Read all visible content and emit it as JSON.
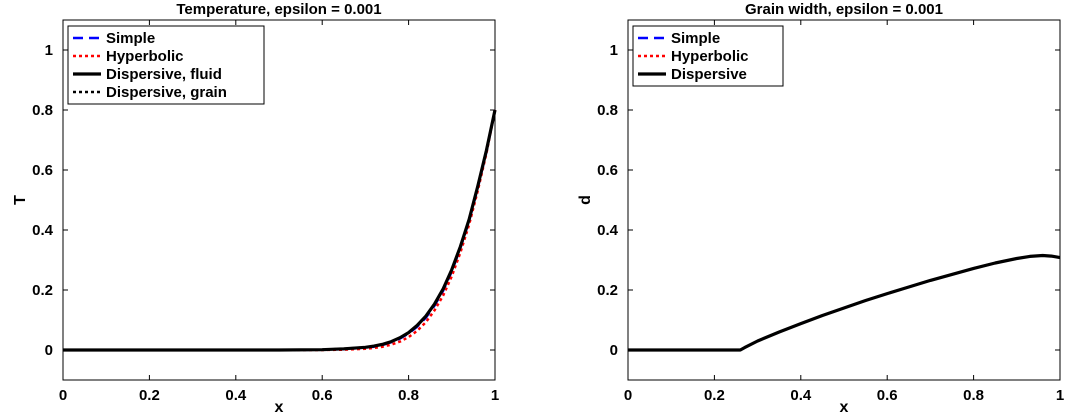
{
  "chart_data": [
    {
      "type": "line",
      "title": "Temperature, epsilon = 0.001",
      "xlabel": "x",
      "ylabel": "T",
      "xlim": [
        0,
        1
      ],
      "ylim": [
        -0.1,
        1.1
      ],
      "xticks": [
        "0",
        "0.2",
        "0.4",
        "0.6",
        "0.8",
        "1"
      ],
      "xtick_values": [
        0,
        0.2,
        0.4,
        0.6,
        0.8,
        1
      ],
      "yticks": [
        "0",
        "0.2",
        "0.4",
        "0.6",
        "0.8",
        "1"
      ],
      "ytick_values": [
        0,
        0.2,
        0.4,
        0.6,
        0.8,
        1
      ],
      "grid": false,
      "legend_position": "top-left",
      "series": [
        {
          "name": "Simple",
          "color": "#0000ff",
          "style": "dashed",
          "x": [
            0,
            0.1,
            0.2,
            0.3,
            0.4,
            0.5,
            0.6,
            0.65,
            0.7,
            0.72,
            0.74,
            0.76,
            0.78,
            0.8,
            0.82,
            0.84,
            0.86,
            0.88,
            0.9,
            0.92,
            0.94,
            0.96,
            0.98,
            1.0
          ],
          "y": [
            0,
            0,
            0,
            0,
            0,
            0,
            0.001,
            0.003,
            0.008,
            0.011,
            0.017,
            0.026,
            0.038,
            0.055,
            0.078,
            0.108,
            0.148,
            0.198,
            0.262,
            0.34,
            0.43,
            0.54,
            0.66,
            0.8
          ]
        },
        {
          "name": "Hyperbolic",
          "color": "#ff0000",
          "style": "dotted",
          "x": [
            0,
            0.1,
            0.2,
            0.3,
            0.4,
            0.5,
            0.6,
            0.65,
            0.7,
            0.72,
            0.74,
            0.76,
            0.78,
            0.8,
            0.82,
            0.84,
            0.86,
            0.88,
            0.9,
            0.92,
            0.94,
            0.96,
            0.98,
            1.0
          ],
          "y": [
            0,
            0,
            0,
            0,
            0,
            0,
            0.0,
            0.001,
            0.004,
            0.007,
            0.011,
            0.018,
            0.028,
            0.043,
            0.064,
            0.093,
            0.132,
            0.182,
            0.246,
            0.325,
            0.418,
            0.53,
            0.655,
            0.8
          ]
        },
        {
          "name": "Dispersive, fluid",
          "color": "#000000",
          "style": "solid",
          "x": [
            0,
            0.1,
            0.2,
            0.3,
            0.4,
            0.5,
            0.6,
            0.65,
            0.7,
            0.72,
            0.74,
            0.76,
            0.78,
            0.8,
            0.82,
            0.84,
            0.86,
            0.88,
            0.9,
            0.92,
            0.94,
            0.96,
            0.98,
            1.0
          ],
          "y": [
            0,
            0,
            0,
            0,
            0,
            0,
            0.001,
            0.004,
            0.009,
            0.013,
            0.019,
            0.028,
            0.041,
            0.058,
            0.082,
            0.113,
            0.153,
            0.204,
            0.268,
            0.345,
            0.435,
            0.545,
            0.665,
            0.8
          ]
        },
        {
          "name": "Dispersive, grain",
          "color": "#000000",
          "style": "dotted",
          "x": [
            0,
            0.1,
            0.2,
            0.3,
            0.4,
            0.5,
            0.6,
            0.65,
            0.7,
            0.72,
            0.74,
            0.76,
            0.78,
            0.8,
            0.82,
            0.84,
            0.86,
            0.88,
            0.9,
            0.92,
            0.94,
            0.96,
            0.98,
            1.0
          ],
          "y": [
            0,
            0,
            0,
            0,
            0,
            0,
            0.001,
            0.004,
            0.009,
            0.013,
            0.019,
            0.028,
            0.041,
            0.058,
            0.082,
            0.113,
            0.153,
            0.204,
            0.268,
            0.345,
            0.435,
            0.545,
            0.665,
            0.8
          ]
        }
      ]
    },
    {
      "type": "line",
      "title": "Grain width, epsilon = 0.001",
      "xlabel": "x",
      "ylabel": "d",
      "xlim": [
        0,
        1
      ],
      "ylim": [
        -0.1,
        1.1
      ],
      "xticks": [
        "0",
        "0.2",
        "0.4",
        "0.6",
        "0.8",
        "1"
      ],
      "xtick_values": [
        0,
        0.2,
        0.4,
        0.6,
        0.8,
        1
      ],
      "yticks": [
        "0",
        "0.2",
        "0.4",
        "0.6",
        "0.8",
        "1"
      ],
      "ytick_values": [
        0,
        0.2,
        0.4,
        0.6,
        0.8,
        1
      ],
      "grid": false,
      "legend_position": "top-left",
      "series": [
        {
          "name": "Simple",
          "color": "#0000ff",
          "style": "dashed",
          "x": [
            0,
            0.1,
            0.2,
            0.26,
            0.27,
            0.3,
            0.35,
            0.4,
            0.45,
            0.5,
            0.55,
            0.6,
            0.65,
            0.7,
            0.75,
            0.8,
            0.85,
            0.9,
            0.93,
            0.96,
            0.98,
            1.0
          ],
          "y": [
            0,
            0,
            0,
            0,
            0.008,
            0.03,
            0.06,
            0.088,
            0.115,
            0.14,
            0.165,
            0.188,
            0.21,
            0.232,
            0.252,
            0.272,
            0.29,
            0.305,
            0.312,
            0.315,
            0.313,
            0.308
          ]
        },
        {
          "name": "Hyperbolic",
          "color": "#ff0000",
          "style": "dotted",
          "x": [
            0,
            0.1,
            0.2,
            0.26,
            0.27,
            0.3,
            0.35,
            0.4,
            0.45,
            0.5,
            0.55,
            0.6,
            0.65,
            0.7,
            0.75,
            0.8,
            0.85,
            0.9,
            0.93,
            0.96,
            0.98,
            1.0
          ],
          "y": [
            0,
            0,
            0,
            0,
            0.008,
            0.03,
            0.06,
            0.088,
            0.115,
            0.14,
            0.165,
            0.188,
            0.21,
            0.232,
            0.252,
            0.272,
            0.29,
            0.305,
            0.312,
            0.315,
            0.313,
            0.308
          ]
        },
        {
          "name": "Dispersive",
          "color": "#000000",
          "style": "solid",
          "x": [
            0,
            0.1,
            0.2,
            0.26,
            0.27,
            0.3,
            0.35,
            0.4,
            0.45,
            0.5,
            0.55,
            0.6,
            0.65,
            0.7,
            0.75,
            0.8,
            0.85,
            0.9,
            0.93,
            0.96,
            0.98,
            1.0
          ],
          "y": [
            0,
            0,
            0,
            0,
            0.008,
            0.03,
            0.06,
            0.088,
            0.115,
            0.14,
            0.165,
            0.188,
            0.21,
            0.232,
            0.252,
            0.272,
            0.29,
            0.305,
            0.312,
            0.315,
            0.313,
            0.308
          ]
        }
      ]
    }
  ]
}
